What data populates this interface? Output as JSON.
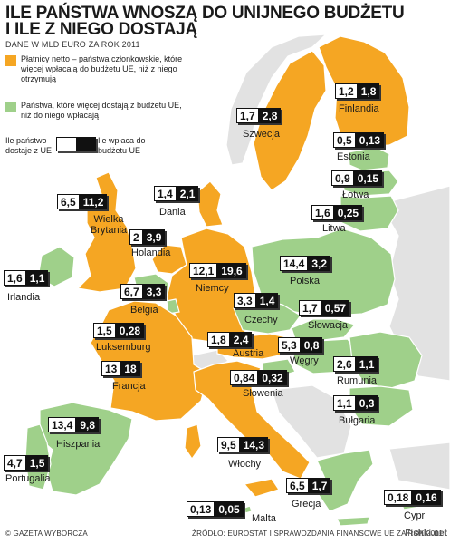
{
  "header": {
    "title_line1": "ILE PAŃSTWA WNOSZĄ DO UNIJNEGO BUDŻETU",
    "title_line2": "I ILE Z NIEGO DOSTAJĄ",
    "subtitle": "DANE W MLD EURO ZA ROK 2011"
  },
  "legend": {
    "net_payers": "Płatnicy netto – państwa członkowskie, które więcej wpłacają do budżetu UE, niż z niego otrzymują",
    "net_receivers": "Państwa, które więcej dostają z budżetu UE, niż do niego wpłacają",
    "example_left": "Ile państwo dostaje z UE",
    "example_right": "Ile wpłaca do budżetu UE",
    "colors": {
      "net_payer": "#f5a623",
      "net_receiver": "#9fd08a"
    }
  },
  "countries": [
    {
      "id": "finland",
      "name": "Finlandia",
      "receives": "1,2",
      "pays": "1,8",
      "group": "net_payer"
    },
    {
      "id": "sweden",
      "name": "Szwecja",
      "receives": "1,7",
      "pays": "2,8",
      "group": "net_payer"
    },
    {
      "id": "estonia",
      "name": "Estonia",
      "receives": "0,5",
      "pays": "0,13",
      "group": "net_receiver"
    },
    {
      "id": "latvia",
      "name": "Łotwa",
      "receives": "0,9",
      "pays": "0,15",
      "group": "net_receiver"
    },
    {
      "id": "lithuania",
      "name": "Litwa",
      "receives": "1,6",
      "pays": "0,25",
      "group": "net_receiver"
    },
    {
      "id": "denmark",
      "name": "Dania",
      "receives": "1,4",
      "pays": "2,1",
      "group": "net_payer"
    },
    {
      "id": "uk",
      "name": "Wielka Brytania",
      "receives": "6,5",
      "pays": "11,2",
      "group": "net_payer"
    },
    {
      "id": "netherlands",
      "name": "Holandia",
      "receives": "2",
      "pays": "3,9",
      "group": "net_payer"
    },
    {
      "id": "ireland",
      "name": "Irlandia",
      "receives": "1,6",
      "pays": "1,1",
      "group": "net_receiver"
    },
    {
      "id": "germany",
      "name": "Niemcy",
      "receives": "12,1",
      "pays": "19,6",
      "group": "net_payer"
    },
    {
      "id": "poland",
      "name": "Polska",
      "receives": "14,4",
      "pays": "3,2",
      "group": "net_receiver"
    },
    {
      "id": "belgium",
      "name": "Belgia",
      "receives": "6,7",
      "pays": "3,3",
      "group": "net_receiver"
    },
    {
      "id": "czechia",
      "name": "Czechy",
      "receives": "3,3",
      "pays": "1,4",
      "group": "net_receiver"
    },
    {
      "id": "slovakia",
      "name": "Słowacja",
      "receives": "1,7",
      "pays": "0,57",
      "group": "net_receiver"
    },
    {
      "id": "luxembourg",
      "name": "Luksemburg",
      "receives": "1,5",
      "pays": "0,28",
      "group": "net_receiver"
    },
    {
      "id": "austria",
      "name": "Austria",
      "receives": "1,8",
      "pays": "2,4",
      "group": "net_payer"
    },
    {
      "id": "hungary",
      "name": "Węgry",
      "receives": "5,3",
      "pays": "0,8",
      "group": "net_receiver"
    },
    {
      "id": "romania",
      "name": "Rumunia",
      "receives": "2,6",
      "pays": "1,1",
      "group": "net_receiver"
    },
    {
      "id": "france",
      "name": "Francja",
      "receives": "13",
      "pays": "18",
      "group": "net_payer"
    },
    {
      "id": "slovenia",
      "name": "Słowenia",
      "receives": "0,84",
      "pays": "0,32",
      "group": "net_receiver"
    },
    {
      "id": "bulgaria",
      "name": "Bułgaria",
      "receives": "1,1",
      "pays": "0,3",
      "group": "net_receiver"
    },
    {
      "id": "spain",
      "name": "Hiszpania",
      "receives": "13,4",
      "pays": "9,8",
      "group": "net_receiver"
    },
    {
      "id": "italy",
      "name": "Włochy",
      "receives": "9,5",
      "pays": "14,3",
      "group": "net_payer"
    },
    {
      "id": "portugal",
      "name": "Portugalia",
      "receives": "4,7",
      "pays": "1,5",
      "group": "net_receiver"
    },
    {
      "id": "greece",
      "name": "Grecja",
      "receives": "6,5",
      "pays": "1,7",
      "group": "net_receiver"
    },
    {
      "id": "malta",
      "name": "Malta",
      "receives": "0,13",
      "pays": "0,05",
      "group": "net_receiver"
    },
    {
      "id": "cyprus",
      "name": "Cypr",
      "receives": "0,18",
      "pays": "0,16",
      "group": "net_receiver"
    }
  ],
  "footer": {
    "credit": "© GAZETA WYBORCZA",
    "source": "ŹRÓDŁO: EUROSTAT I SPRAWOZDANIA FINANSOWE UE ZA ROK 2011",
    "watermark": "Fishki.net"
  }
}
